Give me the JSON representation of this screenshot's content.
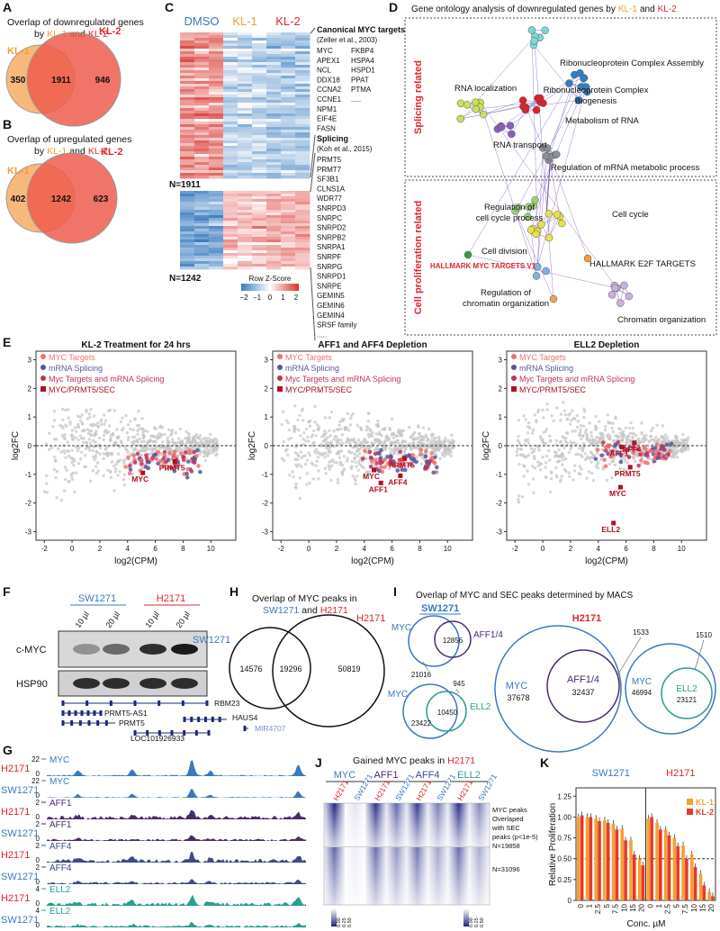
{
  "panel_labels": [
    "A",
    "B",
    "C",
    "D",
    "E",
    "F",
    "G",
    "H",
    "I",
    "J",
    "K"
  ],
  "A": {
    "title_line1": "Overlap of downregulated genes",
    "title_by": "by",
    "title_kl1": "KL-1",
    "title_and": "and",
    "title_kl2": "KL-2",
    "set1": "KL-1",
    "set2": "KL-2",
    "only1": 350,
    "both": 1911,
    "only2": 946
  },
  "B": {
    "title_line1": "Overlap of upregulated genes",
    "title_by": "by",
    "title_kl1": "KL-1",
    "title_and": "and",
    "title_kl2": "KL-2",
    "set1": "KL-1",
    "set2": "KL-2",
    "only1": 402,
    "both": 1242,
    "only2": 623
  },
  "C": {
    "conditions": [
      "DMSO",
      "KL-1",
      "KL-2"
    ],
    "n_top": "N=1911",
    "n_bottom": "N=1242",
    "colorkey_title": "Row Z-Score",
    "colorkey_ticks": [
      "−2",
      "−1",
      "0",
      "1",
      "2"
    ],
    "myc_title": "Canonical MYC targets",
    "myc_ref": "(Zeller et al., 2003)",
    "myc_genes": [
      [
        "MYC",
        "FKBP4"
      ],
      [
        "APEX1",
        "HSPA4"
      ],
      [
        "NCL",
        "HSPD1"
      ],
      [
        "DDX18",
        "PPAT"
      ],
      [
        "CCNA2",
        "PTMA"
      ],
      [
        "CCNE1",
        "....."
      ],
      [
        "NPM1"
      ],
      [
        "EIF4E"
      ],
      [
        "FASN"
      ]
    ],
    "splicing_title": "Splicing",
    "splicing_ref": "(Koh et al., 2015)",
    "splicing_genes": [
      "PRMT5",
      "PRMT7",
      "SF3B1",
      "CLNS1A",
      "WDR77",
      "SNRPD3",
      "SNRPC",
      "SNRPD2",
      "SNRPB2",
      "SNRPA1",
      "SNRPF",
      "SNRPG",
      "SNRPD1",
      "SNRPE",
      "GEMIN5",
      "GEMIN6",
      "GEMIN4",
      "SRSF family",
      "....."
    ]
  },
  "D": {
    "title_parts": [
      "Gene ontology analysis of downregulated genes by",
      "KL-1",
      "and",
      "KL-2"
    ],
    "section1": "Splicing related",
    "section2": "Cell proliferation related",
    "terms": [
      {
        "lines": [
          "Ribonucleoprotein Complex Assembly"
        ]
      },
      {
        "lines": [
          "Ribonucleoprotein Complex",
          "Biogenesis"
        ]
      },
      {
        "lines": [
          "RNA localization"
        ]
      },
      {
        "lines": [
          "Metabolism of RNA"
        ]
      },
      {
        "lines": [
          "RNA transport"
        ]
      },
      {
        "lines": [
          "Regulation of mRNA metabolic process"
        ]
      },
      {
        "lines": [
          "Regulation of",
          "cell cycle process"
        ]
      },
      {
        "lines": [
          "Cell cycle"
        ]
      },
      {
        "lines": [
          "Cell division"
        ]
      },
      {
        "lines": [
          "HALLMARK MYC TARGETS V1"
        ]
      },
      {
        "lines": [
          "HALLMARK E2F TARGETS"
        ]
      },
      {
        "lines": [
          "Regulation of",
          "chromatin organization"
        ]
      },
      {
        "lines": [
          "Chromatin organization"
        ]
      }
    ]
  },
  "E": {
    "plots": [
      {
        "title": "KL-2 Treatment for 24 hrs",
        "xlabel": "log2(CPM)",
        "ylabel": "log2FC",
        "xlim": [
          -2.6,
          11.8
        ],
        "ylim": [
          -3.3,
          3.3
        ],
        "xticks": [
          -2,
          0,
          2,
          4,
          6,
          8,
          10
        ],
        "yticks": [
          -3,
          -2,
          -1,
          0,
          1,
          2,
          3
        ],
        "legend": [
          {
            "label": "MYC Targets",
            "color": "#f07070"
          },
          {
            "label": "mRNA Splicing",
            "color": "#55579a"
          },
          {
            "label": "Myc Targets and mRNA Splicing",
            "color": "#c2305a"
          },
          {
            "label": "MYC/PRMT5/SEC",
            "color": "#b01020"
          }
        ],
        "highlights": [
          {
            "label": "MYC",
            "x": 5.1,
            "y": -0.95
          },
          {
            "label": "PRMT5",
            "x": 7.4,
            "y": -0.55
          }
        ]
      },
      {
        "title": "AFF1 and AFF4 Depletion",
        "xlabel": "log2(CPM)",
        "ylabel": "log2FC",
        "xlim": [
          -2.6,
          11.8
        ],
        "ylim": [
          -3.3,
          3.3
        ],
        "xticks": [
          -2,
          0,
          2,
          4,
          6,
          8,
          10
        ],
        "yticks": [
          -3,
          -2,
          -1,
          0,
          1,
          2,
          3
        ],
        "legend": [
          {
            "label": "MYC Targets",
            "color": "#f07070"
          },
          {
            "label": "mRNA Splicing",
            "color": "#55579a"
          },
          {
            "label": "Myc Targets and mRNA Splicing",
            "color": "#c2305a"
          },
          {
            "label": "MYC/PRMT5/SEC",
            "color": "#b01020"
          }
        ],
        "highlights": [
          {
            "label": "MYC",
            "x": 4.7,
            "y": -0.85
          },
          {
            "label": "AFF1",
            "x": 5.2,
            "y": -1.3
          },
          {
            "label": "PRMT5",
            "x": 6.9,
            "y": -0.45
          },
          {
            "label": "AFF4",
            "x": 6.6,
            "y": -1.05
          }
        ]
      },
      {
        "title": "ELL2 Depletion",
        "xlabel": "log2(CPM)",
        "ylabel": "log2FC",
        "xlim": [
          -2.6,
          11.8
        ],
        "ylim": [
          -3.3,
          3.3
        ],
        "xticks": [
          -2,
          0,
          2,
          4,
          6,
          8,
          10
        ],
        "yticks": [
          -3,
          -2,
          -1,
          0,
          1,
          2,
          3
        ],
        "legend": [
          {
            "label": "MYC Targets",
            "color": "#f07070"
          },
          {
            "label": "mRNA Splicing",
            "color": "#55579a"
          },
          {
            "label": "Myc Targets and mRNA Splicing",
            "color": "#c2305a"
          },
          {
            "label": "MYC/PRMT5/SEC",
            "color": "#b01020"
          }
        ],
        "highlights": [
          {
            "label": "AFF1",
            "x": 5.7,
            "y": -0.05
          },
          {
            "label": "AFF4",
            "x": 6.6,
            "y": 0.1
          },
          {
            "label": "PRMT5",
            "x": 6.3,
            "y": -0.75
          },
          {
            "label": "MYC",
            "x": 5.6,
            "y": -1.45
          },
          {
            "label": "ELL2",
            "x": 5.1,
            "y": -2.7
          }
        ]
      }
    ]
  },
  "F": {
    "cell_lines": [
      "SW1271",
      "H2171"
    ],
    "lanes": [
      "10 µl",
      "20 µl",
      "10 µl",
      "20 µl"
    ],
    "proteins": [
      "c-MYC",
      "HSP90"
    ]
  },
  "G": {
    "genes": [
      "RBM23",
      "PRMT5-AS1",
      "PRMT5",
      "LOC101926933",
      "HAUS4",
      "MIR4707"
    ],
    "tracks": [
      {
        "sample": "H2171",
        "protein": "MYC",
        "max": 22,
        "min": 0
      },
      {
        "sample": "SW1271",
        "protein": "MYC",
        "max": 22,
        "min": 0
      },
      {
        "sample": "H2171",
        "protein": "AFF1",
        "max": 2,
        "min": 0
      },
      {
        "sample": "SW1271",
        "protein": "AFF1",
        "max": 2,
        "min": 0
      },
      {
        "sample": "H2171",
        "protein": "AFF4",
        "max": 2,
        "min": 0
      },
      {
        "sample": "SW1271",
        "protein": "AFF4",
        "max": 2,
        "min": 0
      },
      {
        "sample": "H2171",
        "protein": "ELL2",
        "max": 4,
        "min": 0
      },
      {
        "sample": "SW1271",
        "protein": "ELL2",
        "max": 4,
        "min": 0
      }
    ]
  },
  "H": {
    "title_line1": "Overlap of MYC peaks in",
    "title_parts": [
      "SW1271",
      "and",
      "H2171"
    ],
    "set1": "SW1271",
    "set2": "H2171",
    "only1": 14576,
    "both": 19296,
    "only2": 50819
  },
  "I": {
    "title": "Overlap of MYC and SEC peaks determined by MACS",
    "cell1": "SW1271",
    "cell2": "H2171",
    "sw_aff": {
      "set1": "MYC",
      "set2": "AFF1/4",
      "both": 12856,
      "only1": 21016
    },
    "sw_ell": {
      "set1": "MYC",
      "set2": "ELL2",
      "only2": 945,
      "both": 10450,
      "only1": 23422
    },
    "h_aff": {
      "set1": "MYC",
      "set2": "AFF1/4",
      "only1": 37678,
      "both": 32437,
      "only2": 1533
    },
    "h_ell": {
      "set1": "MYC",
      "set2": "ELL2",
      "only1": 46994,
      "both": 23121,
      "only2": 1510
    }
  },
  "J": {
    "title_parts": [
      "Gained MYC peaks in",
      "H2171"
    ],
    "proteins": [
      "MYC",
      "AFF1",
      "AFF4",
      "ELL2"
    ],
    "samples": [
      "H2171",
      "SW1271",
      "H2171",
      "SW1271",
      "H2171",
      "SW1271",
      "H2171",
      "SW1271"
    ],
    "note_lines": [
      "MYC peaks",
      "Overlaped",
      "with SEC",
      "peaks (p<1e-5)",
      "N=19858"
    ],
    "n_bottom": "N=31096",
    "scale_labels": [
      "0.00",
      "0.25",
      "0.50"
    ]
  },
  "K": {
    "type": "bar",
    "group_labels": [
      "SW1271",
      "H2171"
    ],
    "ylabel": "Relative Proliferation",
    "xlabel": "Conc. µM",
    "categories": [
      "0",
      "1",
      "2.5",
      "5",
      "7.5",
      "10",
      "15",
      "20",
      "0",
      "1",
      "2.5",
      "5",
      "7.5",
      "10",
      "15",
      "20"
    ],
    "ylim": [
      0,
      1.35
    ],
    "yticks": [
      0,
      0.25,
      {
        "value": 0.5,
        "label": "0.50"
      },
      0.75,
      {
        "value": 1,
        "label": "1.00"
      },
      1.25
    ],
    "series": [
      {
        "name": "KL-1",
        "color": "#f5a030",
        "values": [
          1.0,
          1.0,
          0.98,
          0.96,
          0.92,
          0.86,
          0.72,
          0.5,
          0.98,
          0.93,
          0.85,
          0.75,
          0.66,
          0.55,
          0.32,
          0.1
        ]
      },
      {
        "name": "KL-2",
        "color": "#e5392b",
        "values": [
          1.02,
          1.0,
          0.95,
          0.93,
          0.85,
          0.72,
          0.55,
          0.42,
          1.0,
          0.85,
          0.78,
          0.65,
          0.5,
          0.4,
          0.18,
          0.05
        ]
      }
    ]
  }
}
